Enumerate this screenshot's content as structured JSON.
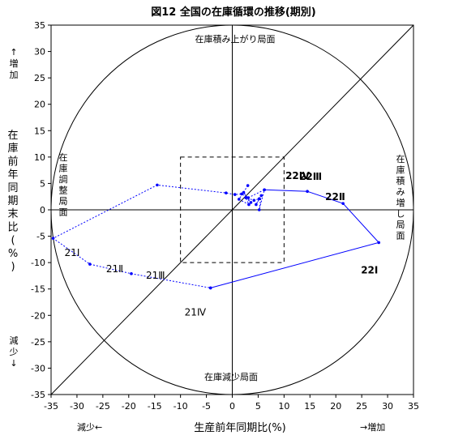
{
  "chart_data": {
    "type": "scatter",
    "title": "図12 全国の在庫循環の推移(期別)",
    "xlabel": "生産前年同期比(%)",
    "ylabel": "在庫前年同期末比(%)",
    "xlim": [
      -35,
      35
    ],
    "ylim": [
      -35,
      35
    ],
    "xticks": [
      -35,
      -30,
      -25,
      -20,
      -15,
      -10,
      -5,
      0,
      5,
      10,
      15,
      20,
      25,
      30,
      35
    ],
    "yticks": [
      -35,
      -30,
      -25,
      -20,
      -15,
      -10,
      -5,
      0,
      5,
      10,
      15,
      20,
      25,
      30,
      35
    ],
    "x_low_label": "減少←",
    "x_high_label": "→増加",
    "y_up_label": "↑増加",
    "y_down_label": "減少↓",
    "quadrant_labels": {
      "top": "在庫積み上がり局面",
      "bottom": "在庫減少局面",
      "left": "在庫調整局面",
      "right": "在庫積み増し局面"
    },
    "reference": {
      "diagonal": "45-degree line",
      "circle_radius": 35,
      "inner_box": [
        -10,
        10
      ]
    },
    "series": [
      {
        "style": "dotted",
        "color": "#0000ff",
        "points": [
          {
            "x": 3.0,
            "y": 4.6
          },
          {
            "x": 1.3,
            "y": 2.0
          },
          {
            "x": 3.2,
            "y": 1.0
          },
          {
            "x": 2.2,
            "y": 3.3
          },
          {
            "x": 3.6,
            "y": 1.4
          },
          {
            "x": 2.6,
            "y": 2.3
          },
          {
            "x": 4.2,
            "y": 1.8
          },
          {
            "x": 5.2,
            "y": 2.1
          },
          {
            "x": 4.6,
            "y": 1.0
          },
          {
            "x": 5.6,
            "y": 2.7
          },
          {
            "x": 5.2,
            "y": 0.0
          },
          {
            "x": 6.2,
            "y": 3.8
          },
          {
            "x": 3.1,
            "y": 2.3
          },
          {
            "x": 1.8,
            "y": 3.0
          },
          {
            "x": 0.5,
            "y": 2.9
          },
          {
            "x": -1.2,
            "y": 3.2
          },
          {
            "x": -14.5,
            "y": 4.7
          },
          {
            "x": -34.6,
            "y": -5.4
          },
          {
            "x": -27.5,
            "y": -10.3
          },
          {
            "x": -19.5,
            "y": -12.1
          },
          {
            "x": -4.2,
            "y": -14.8
          }
        ]
      },
      {
        "style": "solid",
        "color": "#0000ff",
        "points": [
          {
            "x": -4.2,
            "y": -14.8
          },
          {
            "x": 28.3,
            "y": -6.2
          },
          {
            "x": 21.4,
            "y": 1.2
          },
          {
            "x": 14.5,
            "y": 3.5
          },
          {
            "x": 6.2,
            "y": 3.8
          }
        ]
      }
    ],
    "point_labels": [
      {
        "text": "21Ⅰ",
        "x": -34.6,
        "y": -5.4,
        "bold": false
      },
      {
        "text": "21Ⅱ",
        "x": -27.5,
        "y": -10.3,
        "bold": false
      },
      {
        "text": "21Ⅲ",
        "x": -19.5,
        "y": -12.1,
        "bold": false
      },
      {
        "text": "21Ⅳ",
        "x": -4.2,
        "y": -14.8,
        "bold": false
      },
      {
        "text": "22Ⅰ",
        "x": 28.3,
        "y": -6.2,
        "bold": true
      },
      {
        "text": "22Ⅱ",
        "x": 21.4,
        "y": 1.2,
        "bold": true
      },
      {
        "text": "22Ⅲ",
        "x": 14.5,
        "y": 3.5,
        "bold": true
      },
      {
        "text": "22Ⅳ",
        "x": 6.2,
        "y": 3.8,
        "bold": true
      }
    ]
  }
}
